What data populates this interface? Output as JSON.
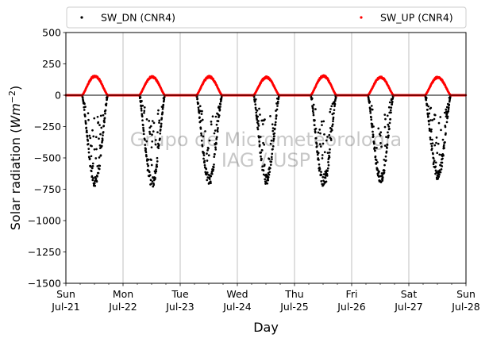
{
  "chart_data": {
    "type": "scatter",
    "xlabel": "Day",
    "ylabel_prefix": "Solar radiation (",
    "ylabel_unit": "Wm",
    "ylabel_exp": "−2",
    "ylabel_suffix": ")",
    "ylabel": "Solar radiation (Wm−2)",
    "ylim": [
      -1500,
      500
    ],
    "xlim": [
      "2019-07-21",
      "2019-07-28"
    ],
    "y_ticks": [
      500,
      250,
      0,
      -250,
      -500,
      -750,
      -1000,
      -1250,
      -1500
    ],
    "y_tick_labels": [
      "500",
      "250",
      "0",
      "−250",
      "−500",
      "−750",
      "−1000",
      "−1250",
      "−1500"
    ],
    "x_tick_labels": [
      {
        "day": "Sun",
        "date": "Jul-21"
      },
      {
        "day": "Mon",
        "date": "Jul-22"
      },
      {
        "day": "Tue",
        "date": "Jul-23"
      },
      {
        "day": "Wed",
        "date": "Jul-24"
      },
      {
        "day": "Thu",
        "date": "Jul-25"
      },
      {
        "day": "Fri",
        "date": "Jul-26"
      },
      {
        "day": "Sat",
        "date": "Jul-27"
      },
      {
        "day": "Sun",
        "date": "Jul-28"
      }
    ],
    "grid": "vertical-major",
    "zero_line": true,
    "legend_position": "top",
    "watermark": [
      "Grupo de Micrometeorologia",
      "IAG / USP"
    ],
    "series": [
      {
        "name": "SW_DN (CNR4)",
        "color": "#000000",
        "marker": "dot",
        "daylight_hours": [
          6.8,
          17.6
        ],
        "daily_peak": [
          {
            "date": "2019-07-21",
            "peak": -730
          },
          {
            "date": "2019-07-22",
            "peak": -740
          },
          {
            "date": "2019-07-23",
            "peak": -720
          },
          {
            "date": "2019-07-24",
            "peak": -715
          },
          {
            "date": "2019-07-25",
            "peak": -745
          },
          {
            "date": "2019-07-26",
            "peak": -710
          },
          {
            "date": "2019-07-27",
            "peak": -680
          }
        ],
        "night_value": 0
      },
      {
        "name": "SW_UP (CNR4)",
        "color": "#ff0000",
        "marker": "dot",
        "daylight_hours": [
          6.8,
          17.6
        ],
        "daily_peak": [
          {
            "date": "2019-07-21",
            "peak": 160
          },
          {
            "date": "2019-07-22",
            "peak": 155
          },
          {
            "date": "2019-07-23",
            "peak": 155
          },
          {
            "date": "2019-07-24",
            "peak": 150
          },
          {
            "date": "2019-07-25",
            "peak": 160
          },
          {
            "date": "2019-07-26",
            "peak": 150
          },
          {
            "date": "2019-07-27",
            "peak": 150
          }
        ],
        "night_value": 0
      }
    ]
  }
}
